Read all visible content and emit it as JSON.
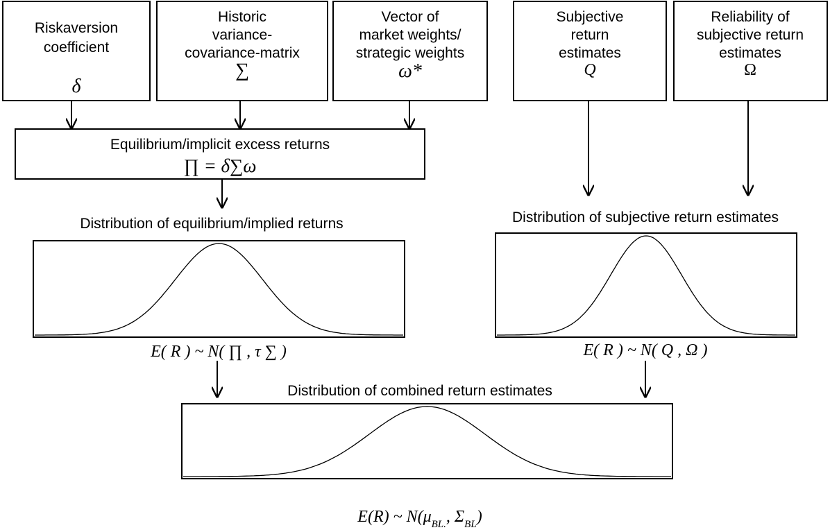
{
  "inputs": [
    {
      "label": [
        "Riskaversion",
        "coefficient"
      ],
      "symbol": "δ"
    },
    {
      "label": [
        "Historic",
        "variance-",
        "covariance-matrix"
      ],
      "symbol": "∑"
    },
    {
      "label": [
        "Vector of",
        "market weights/",
        "strategic weights"
      ],
      "symbol": "ω*"
    },
    {
      "label": [
        "Subjective",
        "return",
        "estimates"
      ],
      "symbol": "Q"
    },
    {
      "label": [
        "Reliability of",
        "subjective return",
        "estimates"
      ],
      "symbol": "Ω"
    }
  ],
  "equilibrium": {
    "label": "Equilibrium/implicit excess returns",
    "formula": "∏ = δ∑ω"
  },
  "distributions": [
    {
      "title": "Distribution of equilibrium/implied returns",
      "formula": "E( R ) ~ N( ∏ , τ ∑ )"
    },
    {
      "title": "Distribution of subjective return estimates",
      "formula": "E( R ) ~ N( Q , Ω )"
    },
    {
      "title": "Distribution of combined return estimates",
      "formula": [
        "E(R) ~ N(μ",
        "BL.",
        ", Σ",
        "BL",
        ")"
      ]
    }
  ]
}
